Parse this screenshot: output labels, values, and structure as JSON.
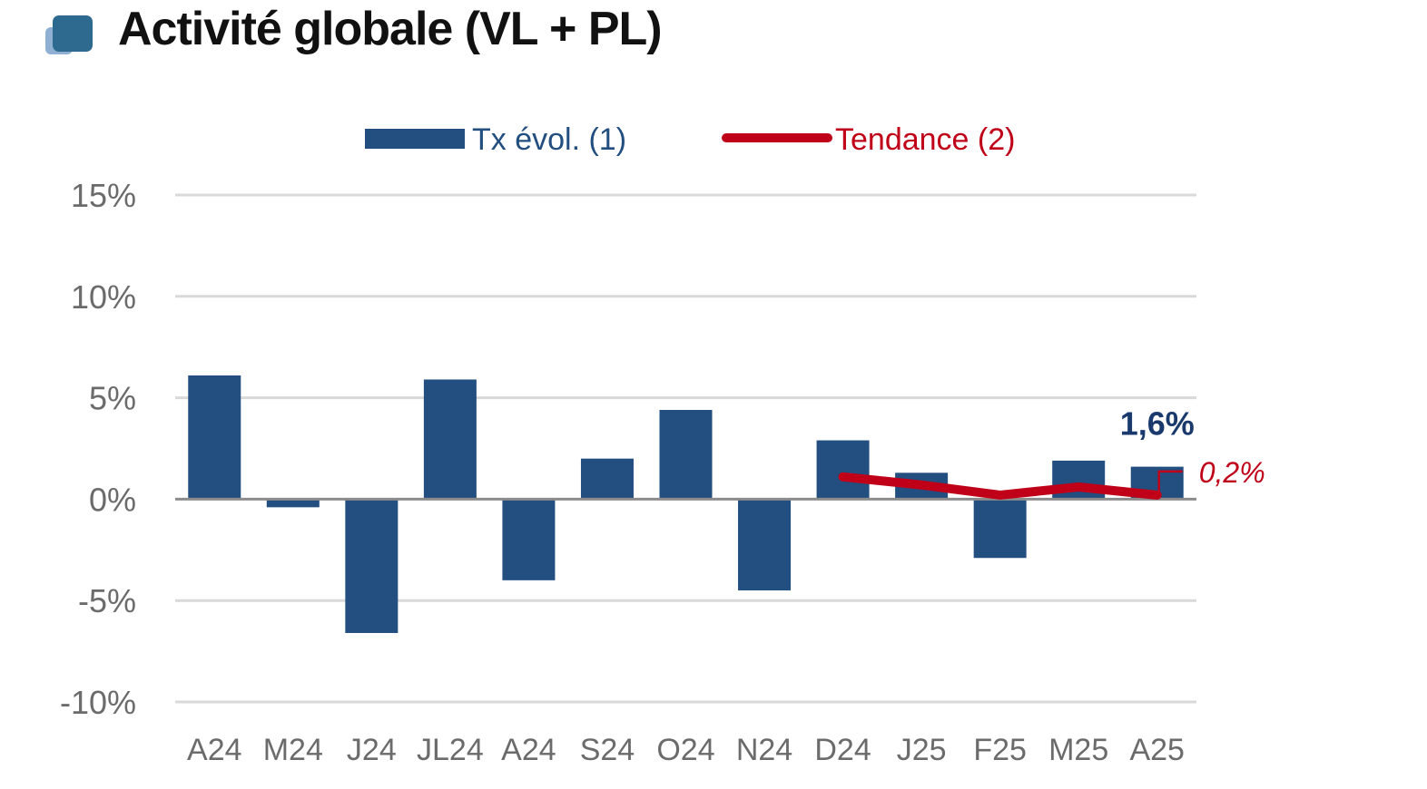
{
  "header": {
    "title": "Activité globale (VL + PL)"
  },
  "colors": {
    "bar": "#234e80",
    "line": "#c00018",
    "grid": "#d9d9d9",
    "zero": "#8c8c8c",
    "logo": "#2e6a8f"
  },
  "chart_data": {
    "type": "bar",
    "categories": [
      "A24",
      "M24",
      "J24",
      "JL24",
      "A24",
      "S24",
      "O24",
      "N24",
      "D24",
      "J25",
      "F25",
      "M25",
      "A25"
    ],
    "series": [
      {
        "name": "Tx évol. (1)",
        "type": "bar",
        "values": [
          6.1,
          -0.4,
          -6.6,
          5.9,
          -4.0,
          2.0,
          4.4,
          -4.5,
          2.9,
          1.3,
          -2.9,
          1.9,
          1.6
        ]
      },
      {
        "name": "Tendance (2)",
        "type": "line",
        "values": [
          null,
          null,
          null,
          null,
          null,
          null,
          null,
          null,
          1.1,
          0.7,
          0.2,
          0.6,
          0.2
        ]
      }
    ],
    "ylim": [
      -10,
      15
    ],
    "yticks": [
      "15%",
      "10%",
      "5%",
      "0%",
      "-5%",
      "-10%"
    ],
    "ytick_values": [
      15,
      10,
      5,
      0,
      -5,
      -10
    ],
    "grid": true,
    "legend": "top",
    "annotations": {
      "last_bar": "1,6%",
      "last_trend": "0,2%"
    }
  }
}
